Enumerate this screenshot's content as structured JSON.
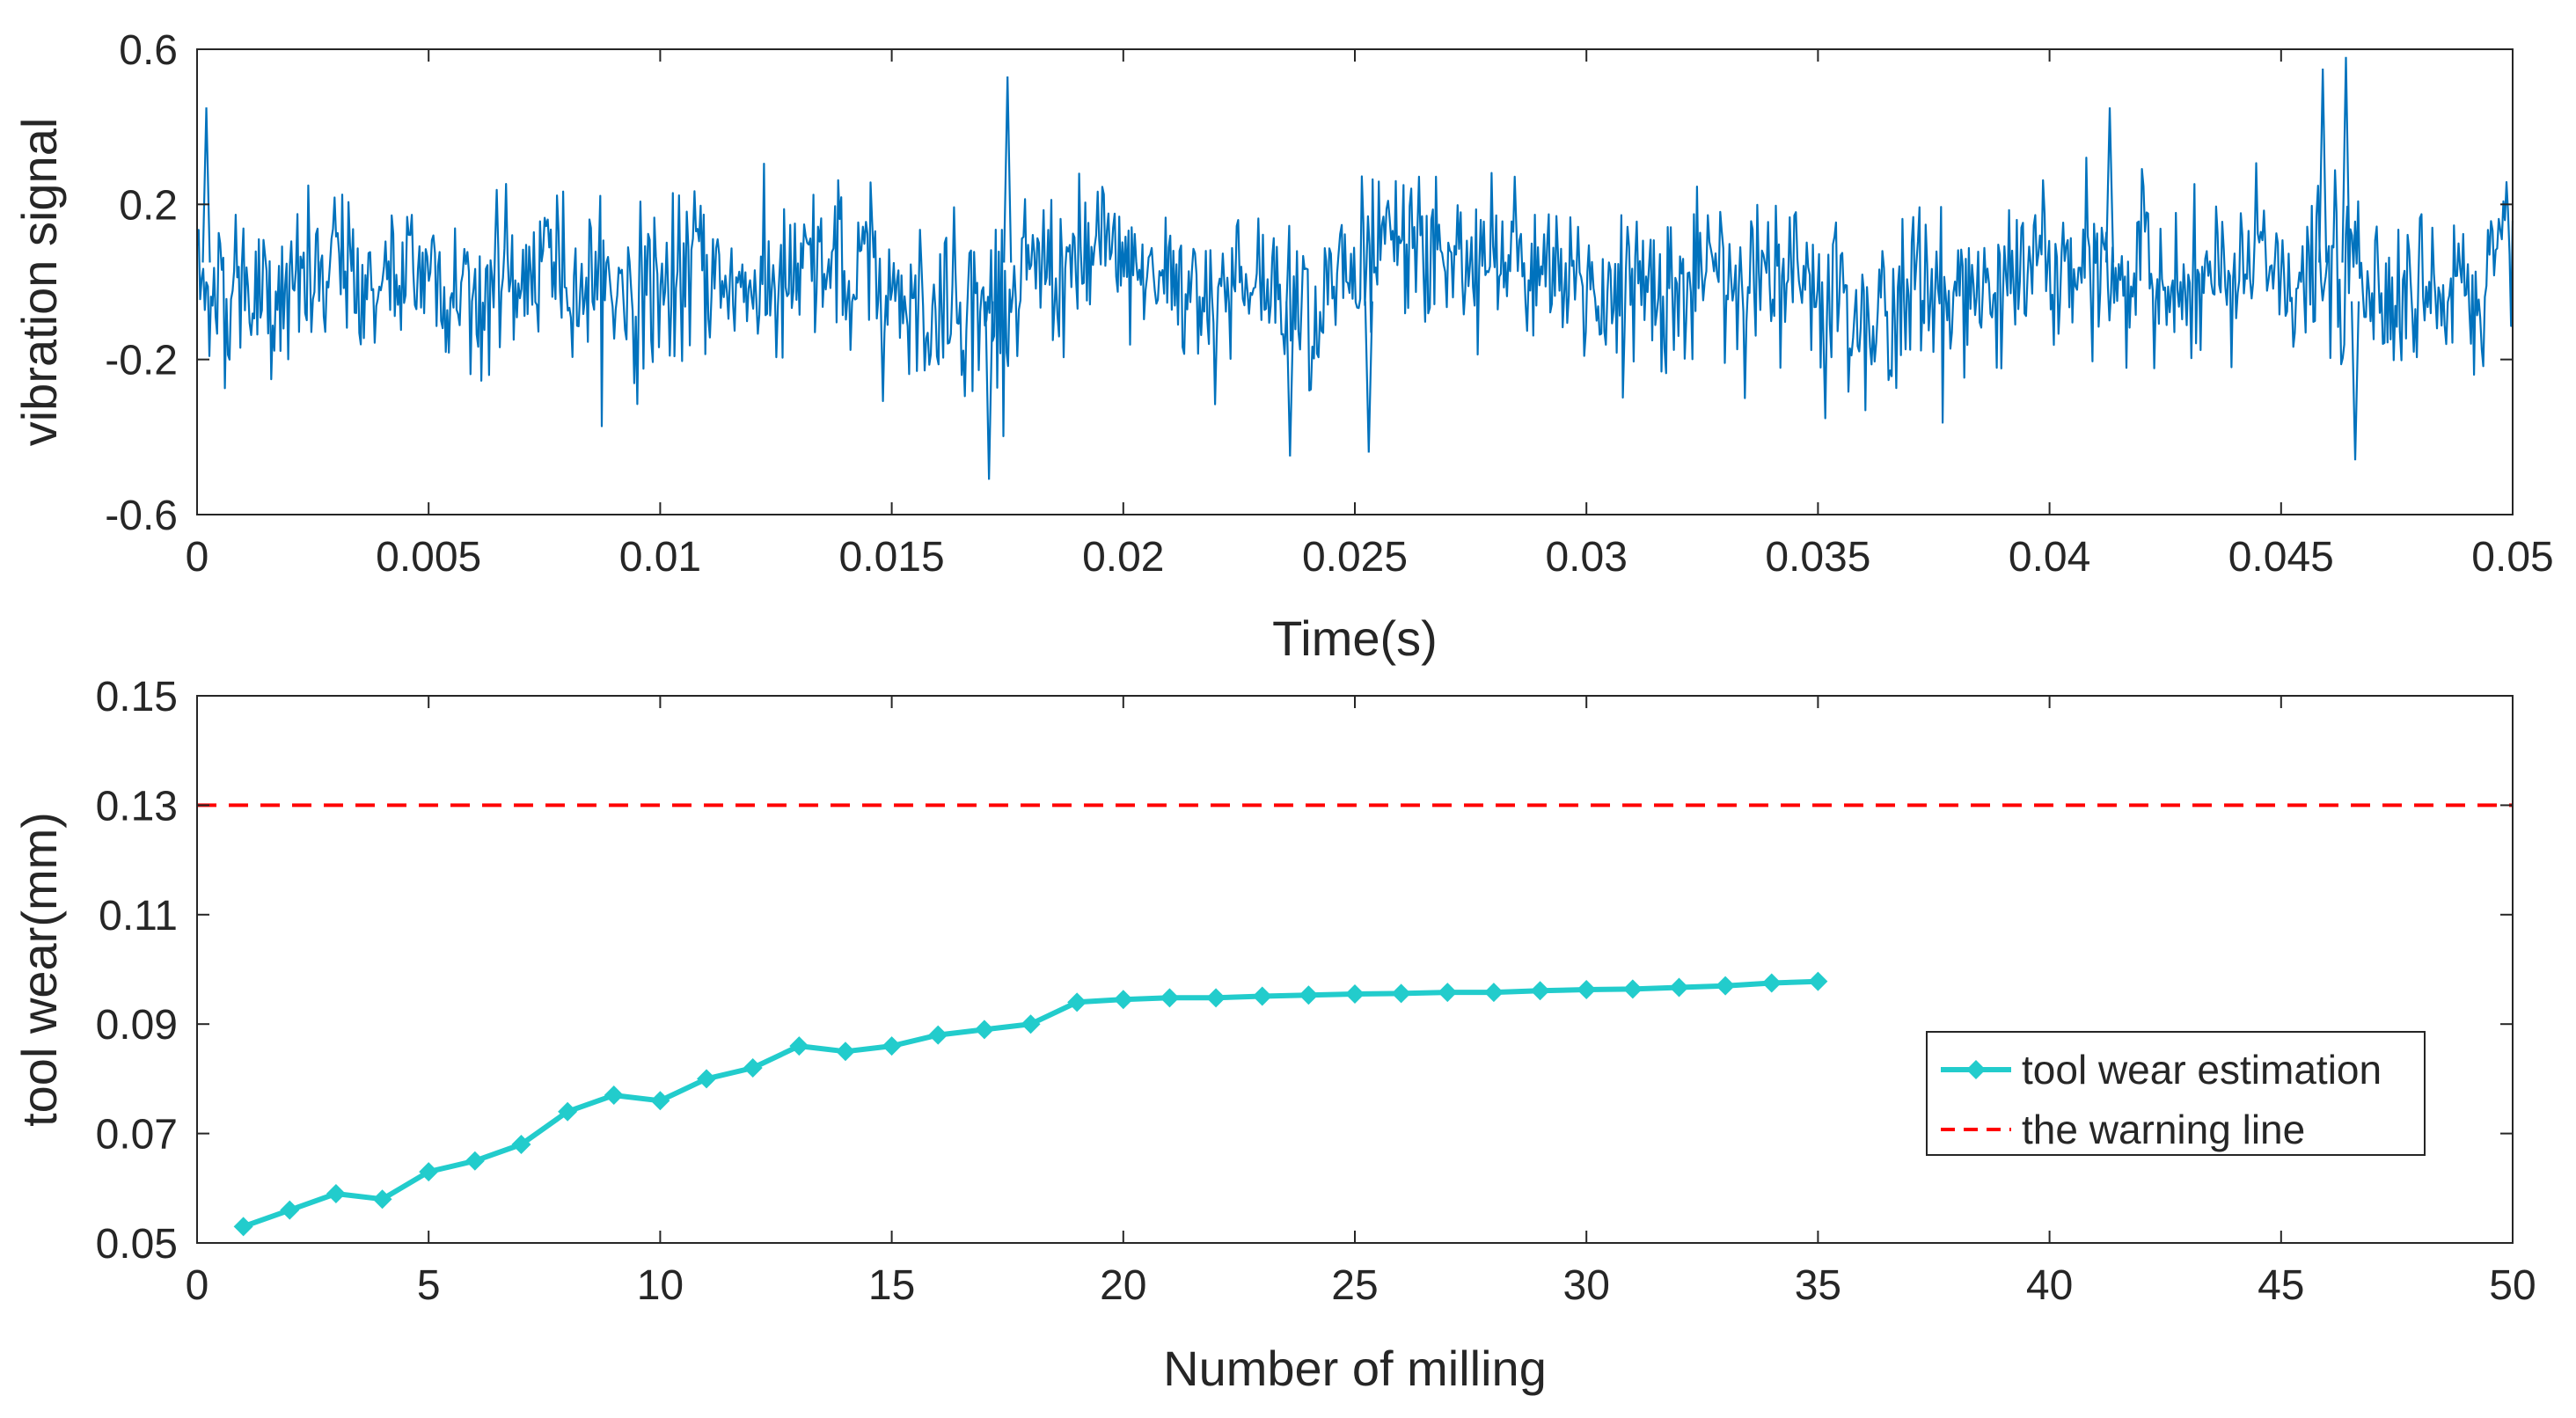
{
  "chart_data": [
    {
      "type": "line",
      "title": "",
      "xlabel": "Time(s)",
      "ylabel": "vibration signal",
      "xlim": [
        0,
        0.05
      ],
      "ylim": [
        -0.6,
        0.6
      ],
      "xticks": [
        "0",
        "0.005",
        "0.01",
        "0.015",
        "0.02",
        "0.025",
        "0.03",
        "0.035",
        "0.04",
        "0.045",
        "0.05"
      ],
      "yticks": [
        "0.6",
        "0.2",
        "-0.2",
        "-0.6"
      ],
      "series": [
        {
          "name": "vibration signal",
          "color": "#0072BD",
          "description": "dense random vibration waveform, roughly within -0.5 to 0.55",
          "n_samples": 1500,
          "amplitude_std": 0.12,
          "envelope_min": -0.51,
          "envelope_max": 0.58,
          "peak_events": [
            {
              "x": 0.0002,
              "y": 0.45
            },
            {
              "x": 0.0175,
              "y": 0.53
            },
            {
              "x": 0.0171,
              "y": -0.51
            },
            {
              "x": 0.0236,
              "y": -0.45
            },
            {
              "x": 0.0253,
              "y": -0.44
            },
            {
              "x": 0.0464,
              "y": 0.58
            },
            {
              "x": 0.0459,
              "y": 0.55
            },
            {
              "x": 0.0413,
              "y": 0.45
            },
            {
              "x": 0.0466,
              "y": -0.46
            }
          ]
        }
      ]
    },
    {
      "type": "line",
      "title": "",
      "xlabel": "Number of milling",
      "ylabel": "tool wear(mm)",
      "xlim": [
        0,
        50
      ],
      "ylim": [
        0.05,
        0.15
      ],
      "xticks": [
        "0",
        "5",
        "10",
        "15",
        "20",
        "25",
        "30",
        "35",
        "40",
        "45",
        "50"
      ],
      "yticks": [
        "0.15",
        "0.13",
        "0.11",
        "0.09",
        "0.07",
        "0.05"
      ],
      "legend_position": "middle-right",
      "series": [
        {
          "name": "tool wear estimation",
          "color": "#22CCCC",
          "marker": "diamond",
          "x": [
            1,
            2,
            3,
            4,
            5,
            6,
            7,
            8,
            9,
            10,
            11,
            12,
            13,
            14,
            15,
            16,
            17,
            18,
            19,
            20,
            21,
            22,
            23,
            24,
            25,
            26,
            27,
            28,
            29,
            30,
            31,
            32,
            33,
            34,
            35
          ],
          "values": [
            0.053,
            0.056,
            0.059,
            0.058,
            0.063,
            0.065,
            0.068,
            0.074,
            0.077,
            0.076,
            0.08,
            0.082,
            0.086,
            0.085,
            0.086,
            0.088,
            0.089,
            0.09,
            0.094,
            0.0945,
            0.0948,
            0.0948,
            0.0951,
            0.0953,
            0.0955,
            0.0956,
            0.0958,
            0.0958,
            0.0961,
            0.0963,
            0.0964,
            0.0967,
            0.097,
            0.0975,
            0.0978
          ]
        },
        {
          "name": "the warning line",
          "color": "#FF0000",
          "style": "dashed",
          "constant_y": 0.13
        }
      ]
    }
  ]
}
